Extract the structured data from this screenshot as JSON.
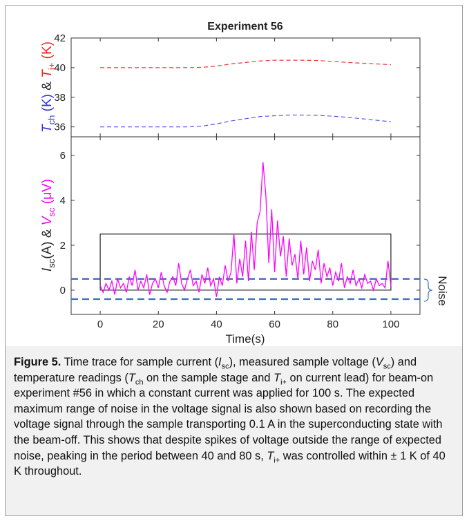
{
  "chart_data": [
    {
      "type": "line",
      "title": "Experiment 56",
      "ylabel": [
        "T",
        "ch",
        "(K)",
        "&",
        "T",
        "i+",
        "(K)"
      ],
      "xlim": [
        -10,
        110
      ],
      "xticks": [
        0,
        20,
        40,
        60,
        80,
        100
      ],
      "ylim": [
        35.33,
        42
      ],
      "yticks": [
        36,
        38,
        40,
        42
      ],
      "series": [
        {
          "color": "#5555ee",
          "x": [
            0,
            10,
            20,
            30,
            35,
            40,
            45,
            50,
            55,
            60,
            65,
            70,
            75,
            80,
            85,
            90,
            95,
            100
          ],
          "values": [
            36,
            36,
            36,
            36,
            36.05,
            36.2,
            36.4,
            36.55,
            36.7,
            36.75,
            36.8,
            36.8,
            36.78,
            36.72,
            36.65,
            36.55,
            36.45,
            36.35
          ]
        },
        {
          "color": "#ee3333",
          "x": [
            0,
            10,
            20,
            30,
            35,
            40,
            45,
            50,
            55,
            60,
            65,
            70,
            75,
            80,
            85,
            90,
            95,
            100
          ],
          "values": [
            40,
            40,
            40,
            40,
            40.02,
            40.1,
            40.25,
            40.35,
            40.45,
            40.5,
            40.5,
            40.5,
            40.48,
            40.42,
            40.35,
            40.3,
            40.25,
            40.2
          ]
        }
      ]
    },
    {
      "type": "line",
      "xlabel": "Time(s)",
      "ylabel": [
        "I",
        "sc",
        "(A)",
        "&",
        "V",
        "sc",
        "(μV)"
      ],
      "xlim": [
        -10,
        110
      ],
      "xticks": [
        0,
        20,
        40,
        60,
        80,
        100
      ],
      "ylim": [
        -1.08,
        6.83
      ],
      "yticks": [
        0,
        2,
        4,
        6
      ],
      "noise_band": [
        0.5,
        -0.4
      ],
      "noise_color": "#4472c4",
      "noise_label": "Noise",
      "series": [
        {
          "color": "#333333",
          "x": [
            0,
            0,
            100,
            100,
            0
          ],
          "values": [
            0,
            2.5,
            2.5,
            0,
            0
          ]
        },
        {
          "color": "#ff00ff",
          "x": [
            0,
            1,
            2,
            3,
            4,
            5,
            6,
            7,
            8,
            9,
            10,
            11,
            12,
            13,
            14,
            15,
            16,
            17,
            18,
            19,
            20,
            21,
            22,
            23,
            24,
            25,
            26,
            27,
            28,
            29,
            30,
            31,
            32,
            33,
            34,
            35,
            36,
            37,
            38,
            39,
            40,
            41,
            42,
            43,
            44,
            45,
            46,
            47,
            48,
            49,
            50,
            51,
            52,
            53,
            54,
            55,
            56,
            57,
            58,
            59,
            60,
            61,
            62,
            63,
            64,
            65,
            66,
            67,
            68,
            69,
            70,
            71,
            72,
            73,
            74,
            75,
            76,
            77,
            78,
            79,
            80,
            81,
            82,
            83,
            84,
            85,
            86,
            87,
            88,
            89,
            90,
            91,
            92,
            93,
            94,
            95,
            96,
            97,
            98,
            99,
            100
          ],
          "values": [
            0.2,
            -0.1,
            0.3,
            0.0,
            0.4,
            -0.2,
            0.5,
            0.1,
            0.3,
            -0.1,
            0.6,
            0.2,
            0.9,
            0.0,
            0.4,
            0.1,
            0.7,
            -0.2,
            0.3,
            0.5,
            0.1,
            0.8,
            0.2,
            -0.1,
            0.4,
            0.6,
            0.2,
            1.2,
            0.3,
            0.0,
            0.5,
            0.9,
            0.2,
            0.4,
            -0.1,
            0.7,
            0.3,
            1.0,
            0.2,
            0.5,
            -0.3,
            0.6,
            0.2,
            1.1,
            0.4,
            0.8,
            2.5,
            0.3,
            1.4,
            0.6,
            2.2,
            0.4,
            2.6,
            0.9,
            3.0,
            3.5,
            5.7,
            4.2,
            1.2,
            3.6,
            0.8,
            3.1,
            1.5,
            2.4,
            0.6,
            2.3,
            1.1,
            1.6,
            0.5,
            2.2,
            0.7,
            1.9,
            0.4,
            1.3,
            0.9,
            1.8,
            0.3,
            1.2,
            0.6,
            1.0,
            0.2,
            0.8,
            0.4,
            1.2,
            0.1,
            0.6,
            0.3,
            0.9,
            0.2,
            0.5,
            0.1,
            0.7,
            0.3,
            0.4,
            0.0,
            0.5,
            0.2,
            0.3,
            0.1,
            1.3,
            0.2
          ]
        }
      ]
    }
  ],
  "caption": [
    "Figure 5.",
    " Time trace for sample current (",
    "I",
    "sc",
    "), measured sample voltage (",
    "V",
    "sc",
    ") and temperature readings (",
    "T",
    "ch",
    " on the sample stage and ",
    "T",
    "i+",
    " on current lead) for beam-on experiment #56 in which a constant current was applied for 100 s. The expected maximum range of noise in the voltage signal is also shown based on recording the voltage signal through the sample transporting 0.1 A in the superconducting state with the beam-off. This shows that despite spikes of voltage outside the range of expected noise, peaking in the period between 40 and 80 s, ",
    "T",
    "i+",
    " was controlled within ± 1 K of 40 K throughout."
  ]
}
